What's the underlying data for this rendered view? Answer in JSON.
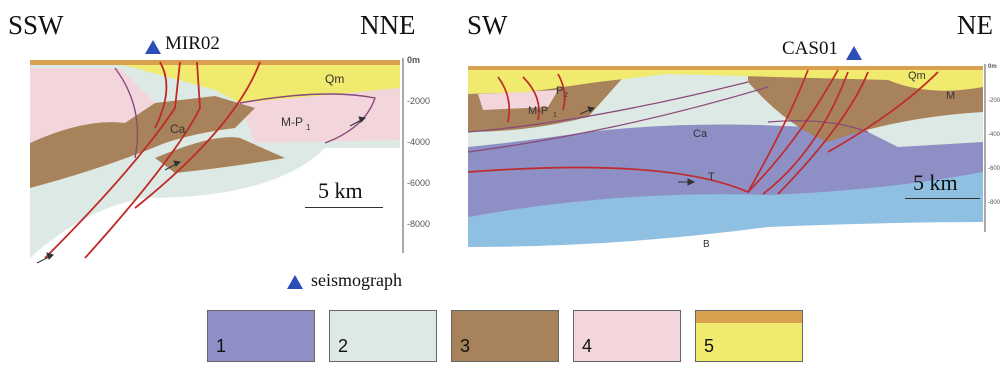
{
  "left_section": {
    "dir_left": "SSW",
    "dir_right": "NNE",
    "station": "MIR02",
    "scale_label": "5 km",
    "unit_labels": [
      "Qm",
      "Ca",
      "M-P",
      "1"
    ],
    "depth_ticks": [
      "0m",
      "-2000",
      "-4000",
      "-6000",
      "-8000"
    ]
  },
  "right_section": {
    "dir_left": "SW",
    "dir_right": "NE",
    "station": "CAS01",
    "scale_label": "5 km",
    "unit_labels": [
      "Qm",
      "M",
      "P",
      "2",
      "M-P",
      "1",
      "Ca",
      "T",
      "B"
    ],
    "depth_ticks": [
      "0m",
      "-200",
      "-400",
      "-600",
      "-800"
    ]
  },
  "legend": {
    "seismograph_label": "seismograph",
    "items": [
      {
        "num": "1",
        "color": "#8e8fc4"
      },
      {
        "num": "2",
        "color": "#dde9e4"
      },
      {
        "num": "3",
        "color": "#a8825a"
      },
      {
        "num": "4",
        "color": "#f2d6dc"
      },
      {
        "num": "5",
        "color": "#f0ea6e",
        "top_color": "#d9a050"
      }
    ]
  },
  "colors": {
    "fault": "#c02a2a",
    "seismograph": "#2a4fb8",
    "basement_b": "#8fc0e2"
  }
}
